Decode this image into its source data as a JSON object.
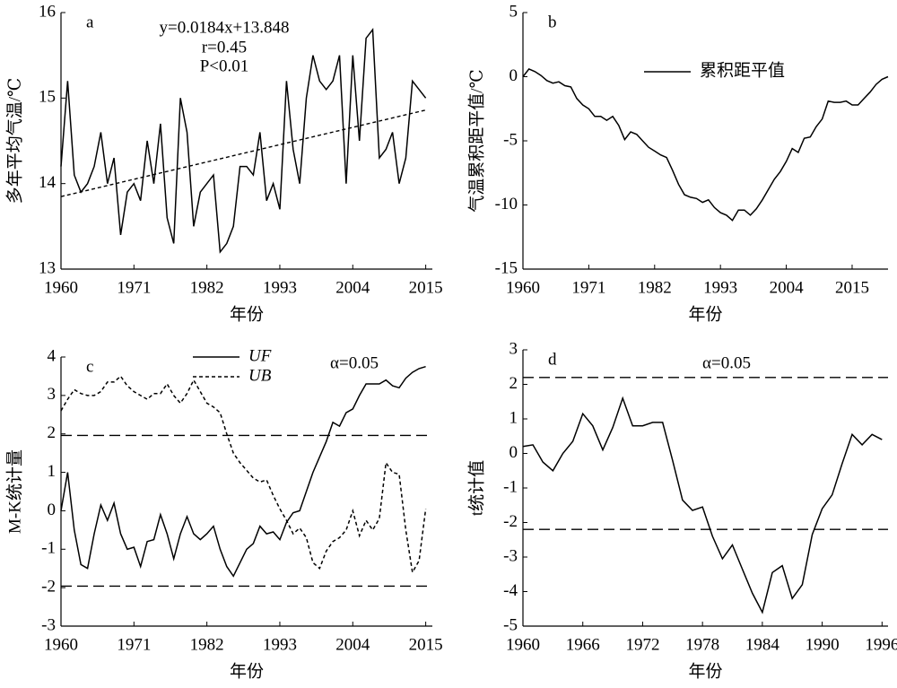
{
  "chart_data": [
    {
      "type": "line",
      "title": "a",
      "xlabel": "年份",
      "ylabel": "多年平均气温/℃",
      "annotations": [
        "y=0.0184x+13.848",
        "r=0.45",
        "P<0.01"
      ],
      "x": [
        1960,
        1961,
        1962,
        1963,
        1964,
        1965,
        1966,
        1967,
        1968,
        1969,
        1970,
        1971,
        1972,
        1973,
        1974,
        1975,
        1976,
        1977,
        1978,
        1979,
        1980,
        1981,
        1982,
        1983,
        1984,
        1985,
        1986,
        1987,
        1988,
        1989,
        1990,
        1991,
        1992,
        1993,
        1994,
        1995,
        1996,
        1997,
        1998,
        1999,
        2000,
        2001,
        2002,
        2003,
        2004,
        2005,
        2006,
        2007,
        2008,
        2009,
        2010,
        2011,
        2012,
        2013,
        2014,
        2015
      ],
      "series": [
        {
          "color": "#000000",
          "dash": "solid",
          "values": [
            14.2,
            15.2,
            14.1,
            13.9,
            14.0,
            14.2,
            14.6,
            14.0,
            14.3,
            13.4,
            13.9,
            14.0,
            13.8,
            14.5,
            14.0,
            14.7,
            13.6,
            13.3,
            15.0,
            14.6,
            13.5,
            13.9,
            14.0,
            14.1,
            13.2,
            13.3,
            13.5,
            14.2,
            14.2,
            14.1,
            14.6,
            13.8,
            14.0,
            13.7,
            15.2,
            14.4,
            14.0,
            15.0,
            15.5,
            15.2,
            15.1,
            15.2,
            15.5,
            14.0,
            15.5,
            14.5,
            15.7,
            15.8,
            14.3,
            14.4,
            14.6,
            14.0,
            14.3,
            15.2,
            15.1,
            15.0
          ]
        }
      ],
      "trend": {
        "x": [
          1960,
          2015
        ],
        "values": [
          13.848,
          14.86
        ]
      },
      "xlim": [
        1960,
        2016
      ],
      "ylim": [
        13,
        16
      ],
      "xticks": [
        1960,
        1971,
        1982,
        1993,
        2004,
        2015
      ],
      "yticks": [
        13,
        14,
        15,
        16
      ]
    },
    {
      "type": "line",
      "title": "b",
      "xlabel": "年份",
      "ylabel": "气温累积距平值/℃",
      "x": [
        1960,
        1961,
        1962,
        1963,
        1964,
        1965,
        1966,
        1967,
        1968,
        1969,
        1970,
        1971,
        1972,
        1973,
        1974,
        1975,
        1976,
        1977,
        1978,
        1979,
        1980,
        1981,
        1982,
        1983,
        1984,
        1985,
        1986,
        1987,
        1988,
        1989,
        1990,
        1991,
        1992,
        1993,
        1994,
        1995,
        1996,
        1997,
        1998,
        1999,
        2000,
        2001,
        2002,
        2003,
        2004,
        2005,
        2006,
        2007,
        2008,
        2009,
        2010,
        2011,
        2012,
        2013,
        2014,
        2015,
        2016,
        2017,
        2018,
        2019,
        2020,
        2021
      ],
      "series": [
        {
          "name": "累积距平值",
          "color": "#000000",
          "dash": "solid",
          "values": [
            0.0,
            0.6,
            0.4,
            0.1,
            -0.3,
            -0.5,
            -0.4,
            -0.7,
            -0.8,
            -1.7,
            -2.2,
            -2.5,
            -3.1,
            -3.1,
            -3.4,
            -3.1,
            -3.8,
            -4.9,
            -4.3,
            -4.5,
            -5.0,
            -5.5,
            -5.8,
            -6.1,
            -6.3,
            -7.3,
            -8.4,
            -9.2,
            -9.4,
            -9.5,
            -9.8,
            -9.6,
            -10.2,
            -10.6,
            -10.8,
            -11.2,
            -10.4,
            -10.4,
            -10.8,
            -10.3,
            -9.6,
            -8.8,
            -8.0,
            -7.4,
            -6.6,
            -5.6,
            -5.9,
            -4.8,
            -4.7,
            -3.9,
            -3.3,
            -1.9,
            -2.0,
            -2.0,
            -1.9,
            -2.2,
            -2.2,
            -1.7,
            -1.2,
            -0.6,
            -0.2,
            0.0
          ]
        }
      ],
      "xlim": [
        1960,
        2021
      ],
      "ylim": [
        -15,
        5
      ],
      "xticks": [
        1960,
        1971,
        1982,
        1993,
        2004,
        2015
      ],
      "yticks": [
        -15,
        -10,
        -5,
        0,
        5
      ]
    },
    {
      "type": "line",
      "title": "c",
      "xlabel": "年份",
      "ylabel": "M-K统计量",
      "annotations": [
        "α=0.05"
      ],
      "x": [
        1960,
        1961,
        1962,
        1963,
        1964,
        1965,
        1966,
        1967,
        1968,
        1969,
        1970,
        1971,
        1972,
        1973,
        1974,
        1975,
        1976,
        1977,
        1978,
        1979,
        1980,
        1981,
        1982,
        1983,
        1984,
        1985,
        1986,
        1987,
        1988,
        1989,
        1990,
        1991,
        1992,
        1993,
        1994,
        1995,
        1996,
        1997,
        1998,
        1999,
        2000,
        2001,
        2002,
        2003,
        2004,
        2005,
        2006,
        2007,
        2008,
        2009,
        2010,
        2011,
        2012,
        2013,
        2014,
        2015
      ],
      "series": [
        {
          "name": "UF",
          "color": "#000000",
          "dash": "solid",
          "values": [
            0.0,
            1.0,
            -0.5,
            -1.4,
            -1.5,
            -0.6,
            0.15,
            -0.25,
            0.2,
            -0.6,
            -1.0,
            -0.95,
            -1.45,
            -0.8,
            -0.75,
            -0.1,
            -0.6,
            -1.25,
            -0.6,
            -0.15,
            -0.6,
            -0.75,
            -0.6,
            -0.4,
            -1.0,
            -1.45,
            -1.7,
            -1.35,
            -1.0,
            -0.85,
            -0.4,
            -0.6,
            -0.55,
            -0.75,
            -0.3,
            -0.05,
            0.0,
            0.5,
            1.0,
            1.4,
            1.8,
            2.3,
            2.2,
            2.55,
            2.65,
            3.0,
            3.3,
            3.3,
            3.3,
            3.4,
            3.25,
            3.2,
            3.45,
            3.6,
            3.7,
            3.75
          ]
        },
        {
          "name": "UB",
          "color": "#000000",
          "dash": "dashed",
          "values": [
            2.6,
            2.9,
            3.15,
            3.05,
            3.0,
            3.0,
            3.1,
            3.35,
            3.35,
            3.5,
            3.25,
            3.1,
            3.0,
            2.9,
            3.05,
            3.05,
            3.3,
            3.0,
            2.8,
            3.05,
            3.4,
            3.1,
            2.8,
            2.7,
            2.55,
            2.0,
            1.5,
            1.25,
            1.05,
            0.85,
            0.75,
            0.8,
            0.4,
            0.05,
            -0.25,
            -0.6,
            -0.45,
            -0.7,
            -1.35,
            -1.5,
            -1.05,
            -0.8,
            -0.7,
            -0.5,
            0.0,
            -0.65,
            -0.25,
            -0.5,
            -0.2,
            1.25,
            1.0,
            0.95,
            -0.5,
            -1.6,
            -1.3,
            0.05
          ]
        }
      ],
      "hlines": [
        1.96,
        -1.96
      ],
      "xlim": [
        1960,
        2016
      ],
      "ylim": [
        -3,
        4
      ],
      "xticks": [
        1960,
        1971,
        1982,
        1993,
        2004,
        2015
      ],
      "yticks": [
        -3,
        -2,
        -1,
        0,
        1,
        2,
        3,
        4
      ]
    },
    {
      "type": "line",
      "title": "d",
      "xlabel": "年份",
      "ylabel": "t统计值",
      "annotations": [
        "α=0.05"
      ],
      "x": [
        1960,
        1961,
        1962,
        1963,
        1964,
        1965,
        1966,
        1967,
        1968,
        1969,
        1970,
        1971,
        1972,
        1973,
        1974,
        1975,
        1976,
        1977,
        1978,
        1979,
        1980,
        1981,
        1982,
        1983,
        1984,
        1985,
        1986,
        1987,
        1988,
        1989,
        1990,
        1991,
        1992,
        1993,
        1994,
        1995,
        1996
      ],
      "series": [
        {
          "color": "#000000",
          "dash": "solid",
          "values": [
            0.2,
            0.25,
            -0.25,
            -0.5,
            0.0,
            0.35,
            1.15,
            0.8,
            0.1,
            0.75,
            1.6,
            0.8,
            0.8,
            0.9,
            0.9,
            -0.2,
            -1.35,
            -1.65,
            -1.55,
            -2.4,
            -3.05,
            -2.65,
            -3.35,
            -4.05,
            -4.6,
            -3.45,
            -3.25,
            -4.2,
            -3.8,
            -2.35,
            -1.6,
            -1.2,
            -0.3,
            0.55,
            0.25,
            0.55,
            0.4
          ]
        }
      ],
      "hlines": [
        2.2,
        -2.2
      ],
      "xlim": [
        1960,
        1996.6
      ],
      "ylim": [
        -5,
        3
      ],
      "xticks": [
        1960,
        1966,
        1972,
        1978,
        1984,
        1990,
        1996
      ],
      "yticks": [
        -5,
        -4,
        -3,
        -2,
        -1,
        0,
        1,
        2,
        3
      ]
    }
  ]
}
